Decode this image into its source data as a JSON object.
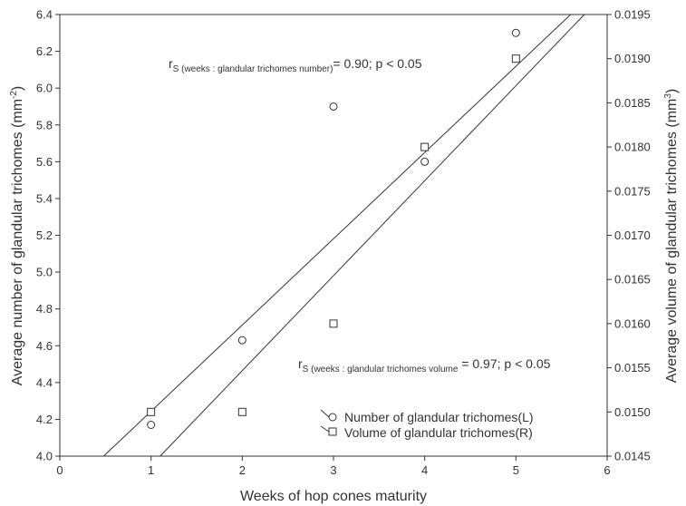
{
  "chart_data": {
    "type": "scatter",
    "xlabel": "Weeks of hop cones maturity",
    "ylabel": "Average number of glandular trichomes (mm",
    "ylabel_sup": "-2",
    "ylabel_close": ")",
    "y2label": "Average volume of glandular trichomes (mm",
    "y2label_sup": "3",
    "y2label_close": ")",
    "xlim": [
      0,
      6
    ],
    "ylim": [
      4.0,
      6.4
    ],
    "y2lim": [
      0.0145,
      0.0195
    ],
    "x_ticks": [
      "0",
      "1",
      "2",
      "3",
      "4",
      "5",
      "6"
    ],
    "y_ticks": [
      "4.0",
      "4.2",
      "4.4",
      "4.6",
      "4.8",
      "5.0",
      "5.2",
      "5.4",
      "5.6",
      "5.8",
      "6.0",
      "6.2",
      "6.4"
    ],
    "y2_ticks": [
      "0.0145",
      "0.0150",
      "0.0155",
      "0.0160",
      "0.0165",
      "0.0170",
      "0.0175",
      "0.0180",
      "0.0185",
      "0.0190",
      "0.0195"
    ],
    "grid": false,
    "legend_position": "bottom-right",
    "series": [
      {
        "name": "Number of glandular trichomes(L)",
        "axis": "left",
        "marker": "circle",
        "x": [
          1,
          2,
          3,
          4,
          5
        ],
        "y": [
          4.17,
          4.63,
          5.9,
          5.6,
          6.3
        ]
      },
      {
        "name": "Volume of glandular trichomes(R)",
        "axis": "right",
        "marker": "square",
        "x": [
          1,
          2,
          3,
          4,
          5
        ],
        "y": [
          0.015,
          0.015,
          0.016,
          0.018,
          0.019
        ]
      }
    ],
    "fit_lines": [
      {
        "axis": "left",
        "x": [
          0.48,
          5.6
        ],
        "y": [
          4.0,
          6.4
        ]
      },
      {
        "axis": "right",
        "x": [
          1.1,
          5.75
        ],
        "y": [
          0.0145,
          0.0195
        ]
      }
    ],
    "annotations": [
      {
        "r": "r",
        "sub": "S (weeks : glandular trichomes number)",
        "text": "= 0.90; p < 0.05"
      },
      {
        "r": "r",
        "sub": "S (weeks : glandular trichomes volume",
        "text": " = 0.97; p < 0.05"
      }
    ],
    "colors": {
      "axis": "#333333",
      "marker": "#333333",
      "line": "#333333",
      "background": "#ffffff"
    }
  }
}
